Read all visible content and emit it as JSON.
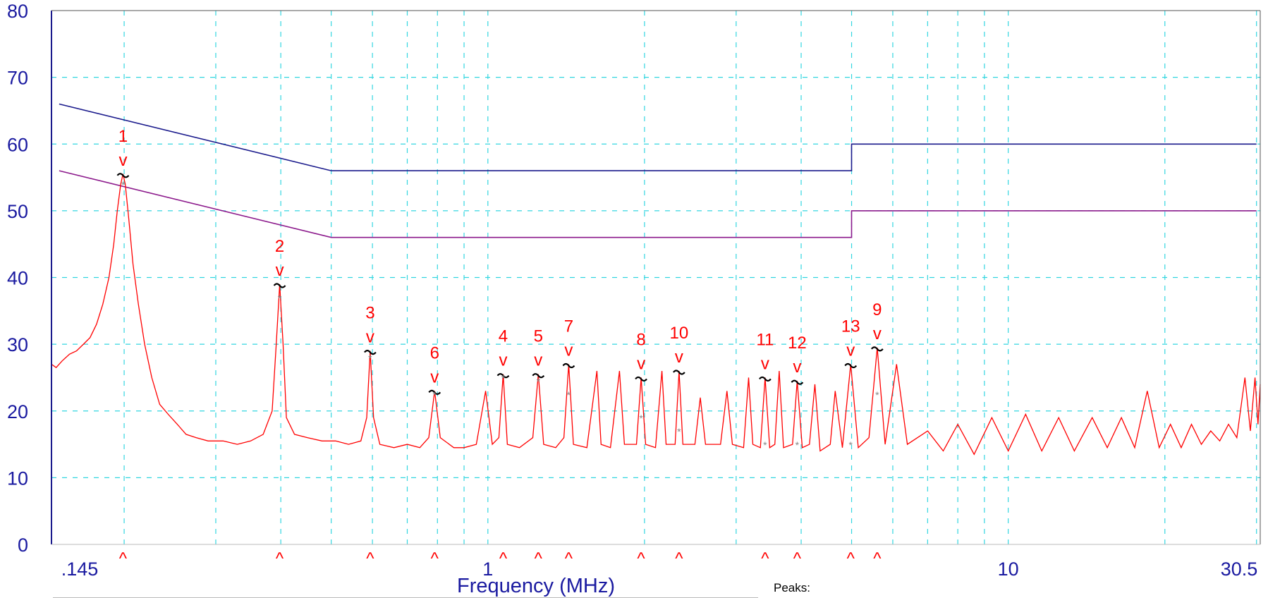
{
  "chart_data": {
    "type": "line",
    "xlabel": "Frequency (MHz)",
    "ylabel": "",
    "x_scale": "log",
    "xlim": [
      0.145,
      30.5
    ],
    "ylim": [
      0,
      80
    ],
    "yticks": [
      0,
      10,
      20,
      30,
      40,
      50,
      60,
      70,
      80
    ],
    "xtick_labels": [
      {
        "value": 0.145,
        "label": ".145"
      },
      {
        "value": 1,
        "label": "1"
      },
      {
        "value": 10,
        "label": "10"
      },
      {
        "value": 30.5,
        "label": "30.5"
      }
    ],
    "grid": true,
    "legend": "Peaks:",
    "limits": [
      {
        "points": [
          [
            0.15,
            66
          ],
          [
            0.5,
            56
          ],
          [
            5,
            56
          ],
          [
            5,
            60
          ],
          [
            30,
            60
          ]
        ],
        "color": "#1a1a8c"
      },
      {
        "points": [
          [
            0.15,
            56
          ],
          [
            0.5,
            46
          ],
          [
            5,
            46
          ],
          [
            5,
            50
          ],
          [
            30,
            50
          ]
        ],
        "color": "#8c1a8c"
      }
    ],
    "peaks": [
      {
        "label": "1",
        "x": 0.199,
        "y": 55.5,
        "avg": 54
      },
      {
        "label": "2",
        "x": 0.398,
        "y": 39.0,
        "avg": 37
      },
      {
        "label": "3",
        "x": 0.594,
        "y": 29.0,
        "avg": 28
      },
      {
        "label": "4",
        "x": 1.07,
        "y": 25.5,
        "avg": 25
      },
      {
        "label": "5",
        "x": 1.25,
        "y": 25.5,
        "avg": 24.5
      },
      {
        "label": "6",
        "x": 0.79,
        "y": 23.0,
        "avg": 22.5
      },
      {
        "label": "7",
        "x": 1.43,
        "y": 27.0,
        "avg": 22.5
      },
      {
        "label": "8",
        "x": 1.97,
        "y": 25.0,
        "avg": 19
      },
      {
        "label": "9",
        "x": 5.6,
        "y": 29.5,
        "avg": 22.5
      },
      {
        "label": "10",
        "x": 2.33,
        "y": 26.0,
        "avg": 17
      },
      {
        "label": "11",
        "x": 3.41,
        "y": 25.0,
        "avg": 15
      },
      {
        "label": "12",
        "x": 3.93,
        "y": 24.5,
        "avg": 15
      },
      {
        "label": "13",
        "x": 4.98,
        "y": 27.0,
        "avg": 15
      }
    ],
    "trace": [
      [
        0.145,
        27
      ],
      [
        0.148,
        26.5
      ],
      [
        0.152,
        27.5
      ],
      [
        0.157,
        28.5
      ],
      [
        0.162,
        29
      ],
      [
        0.167,
        30
      ],
      [
        0.172,
        31
      ],
      [
        0.177,
        33
      ],
      [
        0.182,
        36
      ],
      [
        0.187,
        40
      ],
      [
        0.191,
        45
      ],
      [
        0.194,
        50
      ],
      [
        0.197,
        54
      ],
      [
        0.199,
        55.5
      ],
      [
        0.201,
        54
      ],
      [
        0.204,
        49
      ],
      [
        0.208,
        42
      ],
      [
        0.213,
        36
      ],
      [
        0.219,
        30
      ],
      [
        0.226,
        25
      ],
      [
        0.234,
        21
      ],
      [
        0.243,
        19.5
      ],
      [
        0.253,
        18
      ],
      [
        0.263,
        16.5
      ],
      [
        0.275,
        16
      ],
      [
        0.29,
        15.5
      ],
      [
        0.31,
        15.5
      ],
      [
        0.33,
        15
      ],
      [
        0.35,
        15.5
      ],
      [
        0.37,
        16.5
      ],
      [
        0.385,
        20
      ],
      [
        0.392,
        30
      ],
      [
        0.398,
        39
      ],
      [
        0.404,
        30
      ],
      [
        0.41,
        19
      ],
      [
        0.425,
        16.5
      ],
      [
        0.45,
        16
      ],
      [
        0.48,
        15.5
      ],
      [
        0.51,
        15.5
      ],
      [
        0.54,
        15
      ],
      [
        0.57,
        15.5
      ],
      [
        0.585,
        19
      ],
      [
        0.594,
        29
      ],
      [
        0.603,
        19
      ],
      [
        0.62,
        15
      ],
      [
        0.66,
        14.5
      ],
      [
        0.7,
        15
      ],
      [
        0.74,
        14.5
      ],
      [
        0.77,
        16
      ],
      [
        0.79,
        23
      ],
      [
        0.81,
        16
      ],
      [
        0.86,
        14.5
      ],
      [
        0.9,
        14.5
      ],
      [
        0.95,
        15
      ],
      [
        0.99,
        23
      ],
      [
        1.02,
        15
      ],
      [
        1.05,
        16
      ],
      [
        1.07,
        25.5
      ],
      [
        1.09,
        15
      ],
      [
        1.15,
        14.5
      ],
      [
        1.22,
        16
      ],
      [
        1.25,
        25.5
      ],
      [
        1.28,
        15
      ],
      [
        1.35,
        14.5
      ],
      [
        1.4,
        16
      ],
      [
        1.43,
        27
      ],
      [
        1.46,
        15
      ],
      [
        1.55,
        14.5
      ],
      [
        1.62,
        26
      ],
      [
        1.65,
        15
      ],
      [
        1.72,
        14.5
      ],
      [
        1.79,
        26
      ],
      [
        1.83,
        15
      ],
      [
        1.93,
        15
      ],
      [
        1.97,
        25
      ],
      [
        2.01,
        15
      ],
      [
        2.1,
        14.5
      ],
      [
        2.16,
        26
      ],
      [
        2.2,
        15
      ],
      [
        2.29,
        15
      ],
      [
        2.33,
        26
      ],
      [
        2.37,
        15
      ],
      [
        2.5,
        15
      ],
      [
        2.56,
        22
      ],
      [
        2.62,
        15
      ],
      [
        2.8,
        15
      ],
      [
        2.88,
        23
      ],
      [
        2.95,
        15
      ],
      [
        3.1,
        14.5
      ],
      [
        3.17,
        25
      ],
      [
        3.23,
        15
      ],
      [
        3.34,
        14.5
      ],
      [
        3.41,
        25
      ],
      [
        3.48,
        14.5
      ],
      [
        3.56,
        15
      ],
      [
        3.63,
        26
      ],
      [
        3.7,
        14.5
      ],
      [
        3.85,
        15
      ],
      [
        3.93,
        24.5
      ],
      [
        4.02,
        14.5
      ],
      [
        4.15,
        15
      ],
      [
        4.25,
        24
      ],
      [
        4.35,
        14
      ],
      [
        4.55,
        15
      ],
      [
        4.65,
        23
      ],
      [
        4.8,
        14.5
      ],
      [
        4.98,
        27
      ],
      [
        5.15,
        14.5
      ],
      [
        5.4,
        16
      ],
      [
        5.6,
        29.5
      ],
      [
        5.8,
        15
      ],
      [
        6.1,
        27
      ],
      [
        6.4,
        15
      ],
      [
        7,
        17
      ],
      [
        7.5,
        14
      ],
      [
        8,
        18
      ],
      [
        8.6,
        13.5
      ],
      [
        9.3,
        19
      ],
      [
        10,
        14
      ],
      [
        10.8,
        19.5
      ],
      [
        11.6,
        14
      ],
      [
        12.5,
        19
      ],
      [
        13.4,
        14
      ],
      [
        14.5,
        19
      ],
      [
        15.5,
        14.5
      ],
      [
        16.5,
        19
      ],
      [
        17.5,
        14.5
      ],
      [
        18.5,
        23
      ],
      [
        19.5,
        14.5
      ],
      [
        20.5,
        18
      ],
      [
        21.5,
        14.5
      ],
      [
        22.5,
        18
      ],
      [
        23.5,
        15
      ],
      [
        24.5,
        17
      ],
      [
        25.5,
        15.5
      ],
      [
        26.5,
        18
      ],
      [
        27.5,
        16
      ],
      [
        28.5,
        25
      ],
      [
        29.2,
        17
      ],
      [
        29.8,
        25
      ],
      [
        30.2,
        18
      ],
      [
        30.5,
        24
      ]
    ]
  }
}
